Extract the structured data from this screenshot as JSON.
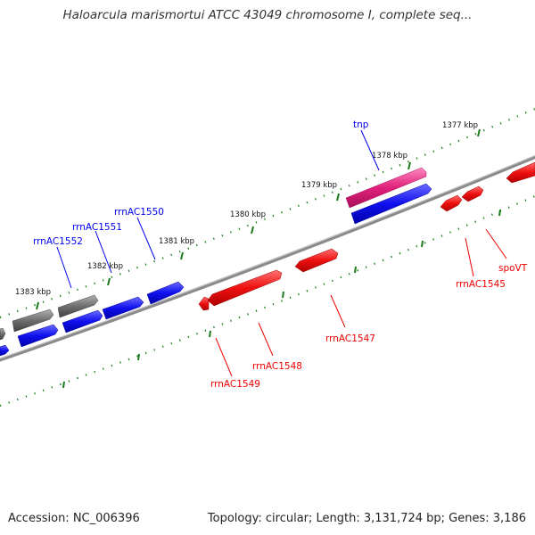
{
  "title": "Haloarcula marismortui ATCC 43049 chromosome I, complete seq...",
  "footer": {
    "accession": "Accession: NC_006396",
    "info": "Topology: circular; Length: 3,131,724 bp; Genes: 3,186"
  },
  "ticks": [
    "1377 kbp",
    "1378 kbp",
    "1379 kbp",
    "1380 kbp",
    "1381 kbp",
    "1382 kbp",
    "1383 kbp"
  ],
  "genes_top": [
    "tnp",
    "rrnAC1550",
    "rrnAC1551",
    "rrnAC1552"
  ],
  "genes_bottom": [
    "spoVT",
    "rrnAC1545",
    "rrnAC1547",
    "rrnAC1548",
    "rrnAC1549"
  ],
  "colors": {
    "blue": "#0000ee",
    "red": "#ee0000",
    "magenta": "#e0207a",
    "gray": "#707070",
    "backbone": "#808080",
    "tick": "#1a7a1a"
  }
}
